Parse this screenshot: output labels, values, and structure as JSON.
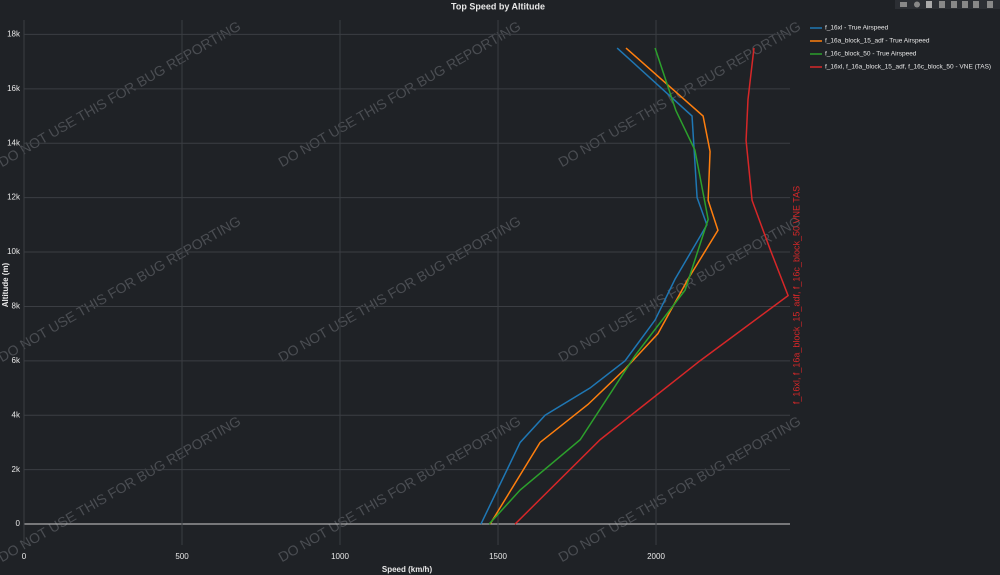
{
  "chart_data": {
    "type": "line",
    "title": "Top Speed by Altitude",
    "x_label": "Speed (km/h)",
    "y_label": "Altitude (m)",
    "xlim": [
      0,
      2424
    ],
    "ylim": [
      -770,
      18530
    ],
    "xticks": [
      0,
      500,
      1000,
      1500,
      2000
    ],
    "yticks": [
      0,
      {
        "value": 2000,
        "label": "2k"
      },
      {
        "value": 4000,
        "label": "4k"
      },
      {
        "value": 6000,
        "label": "6k"
      },
      {
        "value": 8000,
        "label": "8k"
      },
      {
        "value": 10000,
        "label": "10k"
      },
      {
        "value": 12000,
        "label": "12k"
      },
      {
        "value": 14000,
        "label": "14k"
      },
      {
        "value": 16000,
        "label": "16k"
      },
      {
        "value": 18000,
        "label": "18k"
      }
    ],
    "grid": true,
    "series": [
      {
        "name": "f_16xl - True Airspeed",
        "color": "#1f77b4",
        "x": [
          1446,
          1570,
          1649,
          1791,
          1902,
          1997,
          2060,
          2161,
          2130,
          2114,
          1877
        ],
        "values": [
          0,
          3000,
          4000,
          5000,
          6000,
          7500,
          9000,
          11000,
          12000,
          15000,
          17500
        ]
      },
      {
        "name": "f_16a_block_15_adf - True Airspeed",
        "color": "#ff7f0e",
        "x": [
          1475,
          1633,
          1785,
          1902,
          2006,
          2101,
          2196,
          2165,
          2171,
          2149,
          1905
        ],
        "values": [
          0,
          3000,
          4400,
          5700,
          7000,
          9000,
          10800,
          11900,
          13700,
          15000,
          17500
        ]
      },
      {
        "name": "f_16c_block_50 - True Airspeed",
        "color": "#2ca02c",
        "x": [
          1472,
          1570,
          1760,
          1934,
          2092,
          2165,
          2123,
          2063,
          1997
        ],
        "values": [
          0,
          1250,
          3100,
          6200,
          8600,
          11200,
          13750,
          15200,
          17500
        ]
      },
      {
        "name": "f_16xl, f_16a_block_15_adf, f_16c_block_50 - VNE (TAS)",
        "color": "#d62728",
        "x": [
          1554,
          1823,
          2139,
          2418,
          2361,
          2304,
          2285,
          2291,
          2310
        ],
        "values": [
          0,
          3100,
          6000,
          8400,
          10100,
          11900,
          14100,
          15600,
          17500
        ]
      }
    ],
    "annotation": "f_16xl, f_16a_block_15_adf, f_16c_block_50 VNE TAS",
    "watermark": "DO NOT USE THIS FOR BUG REPORTING"
  }
}
